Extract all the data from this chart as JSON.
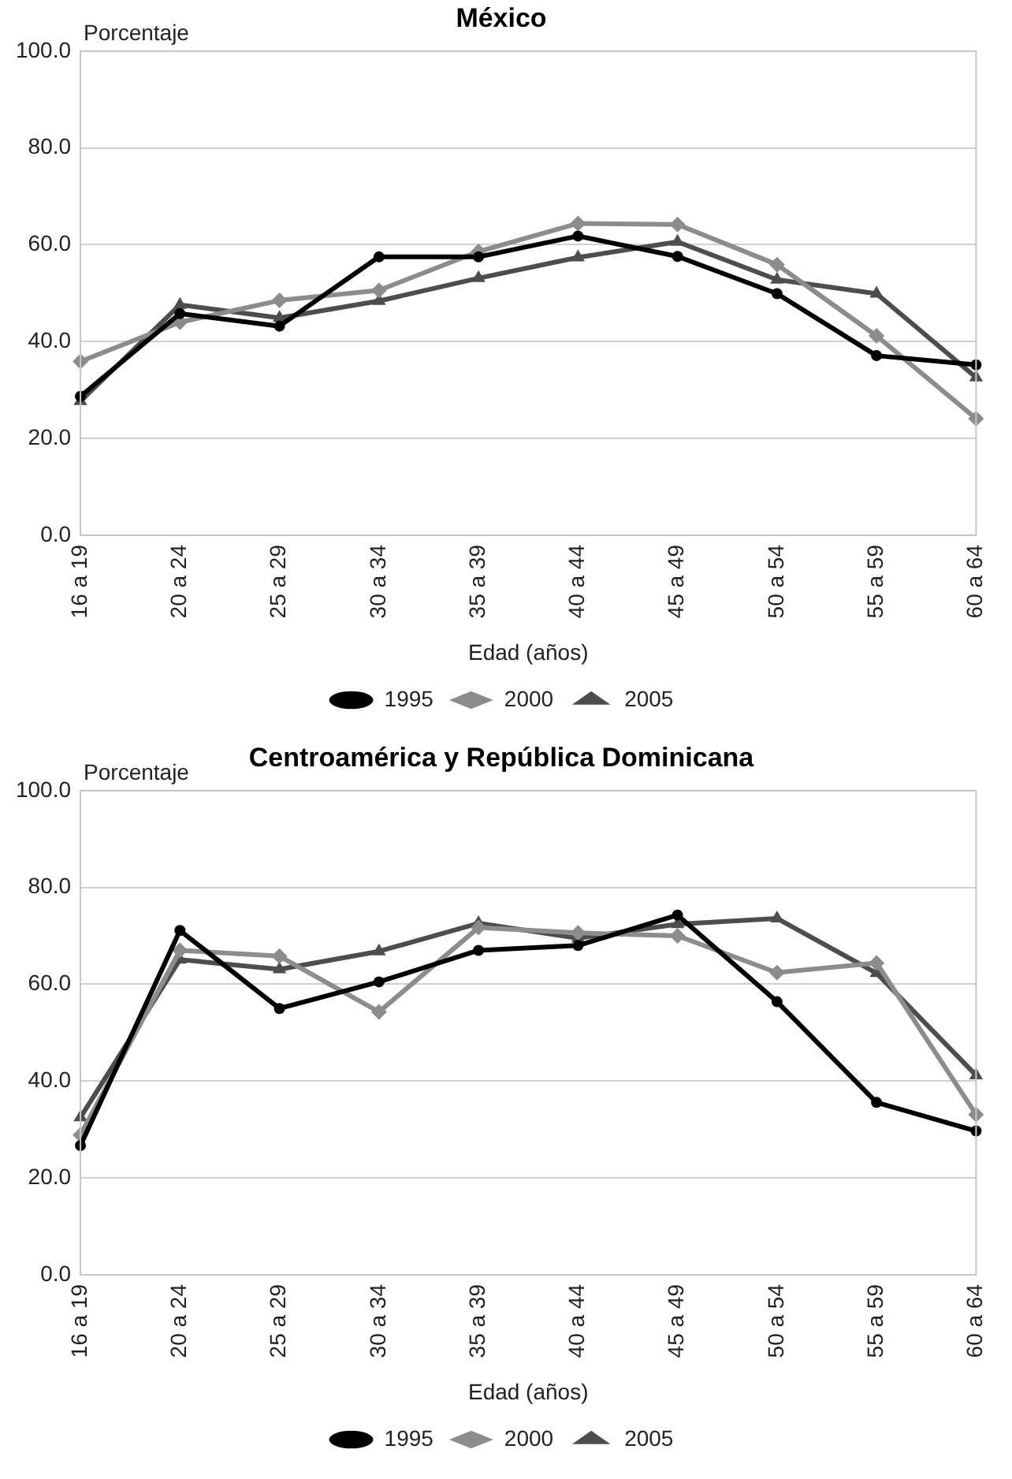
{
  "chart_data": [
    {
      "type": "line",
      "title": "México",
      "ylabel": "Porcentaje",
      "xlabel": "Edad (años)",
      "categories": [
        "16 a 19",
        "20 a 24",
        "25 a 29",
        "30 a 34",
        "35 a 39",
        "40 a 44",
        "45 a 49",
        "50 a 54",
        "55 a 59",
        "60 a 64"
      ],
      "ylim": [
        0,
        100
      ],
      "yticks": [
        {
          "value": 0,
          "label": "0.0"
        },
        {
          "value": 20,
          "label": "20.0"
        },
        {
          "value": 40,
          "label": "40.0"
        },
        {
          "value": 60,
          "label": "60.0"
        },
        {
          "value": 80,
          "label": "80.0"
        },
        {
          "value": 100,
          "label": "100.0"
        }
      ],
      "grid": "y",
      "legend": "bottom",
      "series": [
        {
          "name": "1995",
          "color": "#000000",
          "marker": "circle",
          "values": [
            28.7,
            45.8,
            43.2,
            57.5,
            57.5,
            61.8,
            57.6,
            49.9,
            37.1,
            35.2
          ]
        },
        {
          "name": "2000",
          "color": "#8c8c8c",
          "marker": "diamond",
          "values": [
            35.9,
            44.0,
            48.5,
            50.6,
            58.6,
            64.4,
            64.2,
            55.9,
            41.2,
            24.1
          ]
        },
        {
          "name": "2005",
          "color": "#4d4d4d",
          "marker": "triangle",
          "values": [
            27.7,
            47.6,
            44.9,
            48.4,
            53.1,
            57.4,
            60.6,
            52.8,
            49.9,
            32.6
          ]
        }
      ]
    },
    {
      "type": "line",
      "title": "Centroamérica y República Dominicana",
      "ylabel": "Porcentaje",
      "xlabel": "Edad (años)",
      "categories": [
        "16 a 19",
        "20 a 24",
        "25 a 29",
        "30 a 34",
        "35 a 39",
        "40 a 44",
        "45 a 49",
        "50 a 54",
        "55 a 59",
        "60 a 64"
      ],
      "ylim": [
        0,
        100
      ],
      "yticks": [
        {
          "value": 0,
          "label": "0.0"
        },
        {
          "value": 20,
          "label": "20.0"
        },
        {
          "value": 40,
          "label": "40.0"
        },
        {
          "value": 60,
          "label": "60.0"
        },
        {
          "value": 80,
          "label": "80.0"
        },
        {
          "value": 100,
          "label": "100.0"
        }
      ],
      "grid": "y",
      "legend": "bottom",
      "series": [
        {
          "name": "1995",
          "color": "#000000",
          "marker": "circle",
          "values": [
            26.7,
            71.1,
            55.0,
            60.5,
            67.0,
            68.0,
            74.3,
            56.4,
            35.6,
            29.7
          ]
        },
        {
          "name": "2000",
          "color": "#8c8c8c",
          "marker": "diamond",
          "values": [
            28.9,
            67.0,
            65.8,
            54.3,
            71.7,
            70.6,
            70.0,
            62.4,
            64.4,
            33.1
          ]
        },
        {
          "name": "2005",
          "color": "#4d4d4d",
          "marker": "triangle",
          "values": [
            32.5,
            65.1,
            63.1,
            66.8,
            72.6,
            69.5,
            72.4,
            73.6,
            62.3,
            41.2
          ]
        }
      ]
    }
  ]
}
